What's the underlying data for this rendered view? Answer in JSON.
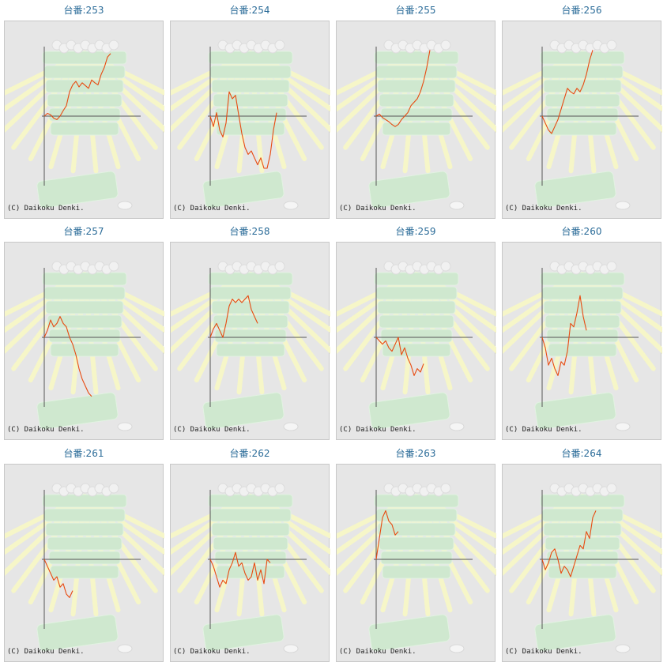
{
  "colors": {
    "title": "#2a6b98",
    "line": "#e84a10",
    "axis": "#555555",
    "panel_bg": "#e6e6e6",
    "art_green": "#cfe8cf",
    "art_rays": "#f6f6c8"
  },
  "copyright": "(C) Daikoku Denki.",
  "chart_data": [
    {
      "type": "line",
      "title": "台番:253",
      "xlim": [
        0,
        100
      ],
      "ylim": [
        -100,
        100
      ],
      "values": [
        0,
        4,
        2,
        -3,
        -5,
        0,
        8,
        15,
        35,
        45,
        50,
        42,
        48,
        44,
        40,
        52,
        48,
        45,
        60,
        70,
        85,
        90
      ]
    },
    {
      "type": "line",
      "title": "台番:254",
      "xlim": [
        0,
        100
      ],
      "ylim": [
        -100,
        100
      ],
      "values": [
        0,
        -15,
        5,
        -20,
        -30,
        -10,
        35,
        25,
        30,
        2,
        -25,
        -45,
        -55,
        -50,
        -60,
        -70,
        -60,
        -75,
        -75,
        -55,
        -20,
        5
      ]
    },
    {
      "type": "line",
      "title": "台番:255",
      "xlim": [
        0,
        100
      ],
      "ylim": [
        -100,
        100
      ],
      "values": [
        0,
        3,
        -2,
        -5,
        -8,
        -12,
        -15,
        -12,
        -5,
        0,
        5,
        15,
        20,
        25,
        35,
        50,
        70,
        95
      ]
    },
    {
      "type": "line",
      "title": "台番:256",
      "xlim": [
        0,
        100
      ],
      "ylim": [
        -100,
        100
      ],
      "values": [
        0,
        -10,
        -20,
        -25,
        -15,
        -5,
        10,
        25,
        40,
        35,
        32,
        40,
        35,
        45,
        60,
        80,
        95
      ]
    },
    {
      "type": "line",
      "title": "台番:257",
      "xlim": [
        0,
        100
      ],
      "ylim": [
        -100,
        100
      ],
      "values": [
        0,
        10,
        25,
        15,
        20,
        30,
        20,
        15,
        0,
        -10,
        -25,
        -45,
        -60,
        -70,
        -80,
        -85
      ]
    },
    {
      "type": "line",
      "title": "台番:258",
      "xlim": [
        0,
        100
      ],
      "ylim": [
        -100,
        100
      ],
      "values": [
        0,
        12,
        20,
        10,
        0,
        20,
        45,
        55,
        50,
        55,
        50,
        55,
        60,
        40,
        30,
        20
      ]
    },
    {
      "type": "line",
      "title": "台番:259",
      "xlim": [
        0,
        100
      ],
      "ylim": [
        -100,
        100
      ],
      "values": [
        0,
        -5,
        -10,
        -5,
        -15,
        -20,
        -10,
        0,
        -25,
        -15,
        -30,
        -40,
        -55,
        -45,
        -50,
        -38
      ]
    },
    {
      "type": "line",
      "title": "台番:260",
      "xlim": [
        0,
        100
      ],
      "ylim": [
        -100,
        100
      ],
      "values": [
        0,
        -15,
        -40,
        -30,
        -45,
        -55,
        -35,
        -40,
        -20,
        20,
        15,
        35,
        60,
        30,
        10
      ]
    },
    {
      "type": "line",
      "title": "台番:261",
      "xlim": [
        0,
        100
      ],
      "ylim": [
        -100,
        100
      ],
      "values": [
        0,
        -10,
        -20,
        -30,
        -25,
        -40,
        -35,
        -50,
        -55,
        -45
      ]
    },
    {
      "type": "line",
      "title": "台番:262",
      "xlim": [
        0,
        100
      ],
      "ylim": [
        -100,
        100
      ],
      "values": [
        0,
        -10,
        -25,
        -40,
        -30,
        -35,
        -15,
        -5,
        10,
        -10,
        -5,
        -20,
        -30,
        -25,
        -5,
        -30,
        -15,
        -35,
        0,
        -5
      ]
    },
    {
      "type": "line",
      "title": "台番:263",
      "xlim": [
        0,
        100
      ],
      "ylim": [
        -100,
        100
      ],
      "values": [
        0,
        30,
        60,
        70,
        55,
        50,
        35,
        40
      ]
    },
    {
      "type": "line",
      "title": "台番:264",
      "xlim": [
        0,
        100
      ],
      "ylim": [
        -100,
        100
      ],
      "values": [
        0,
        -15,
        -5,
        10,
        15,
        0,
        -20,
        -10,
        -15,
        -25,
        -10,
        5,
        20,
        15,
        40,
        30,
        60,
        70
      ]
    }
  ]
}
